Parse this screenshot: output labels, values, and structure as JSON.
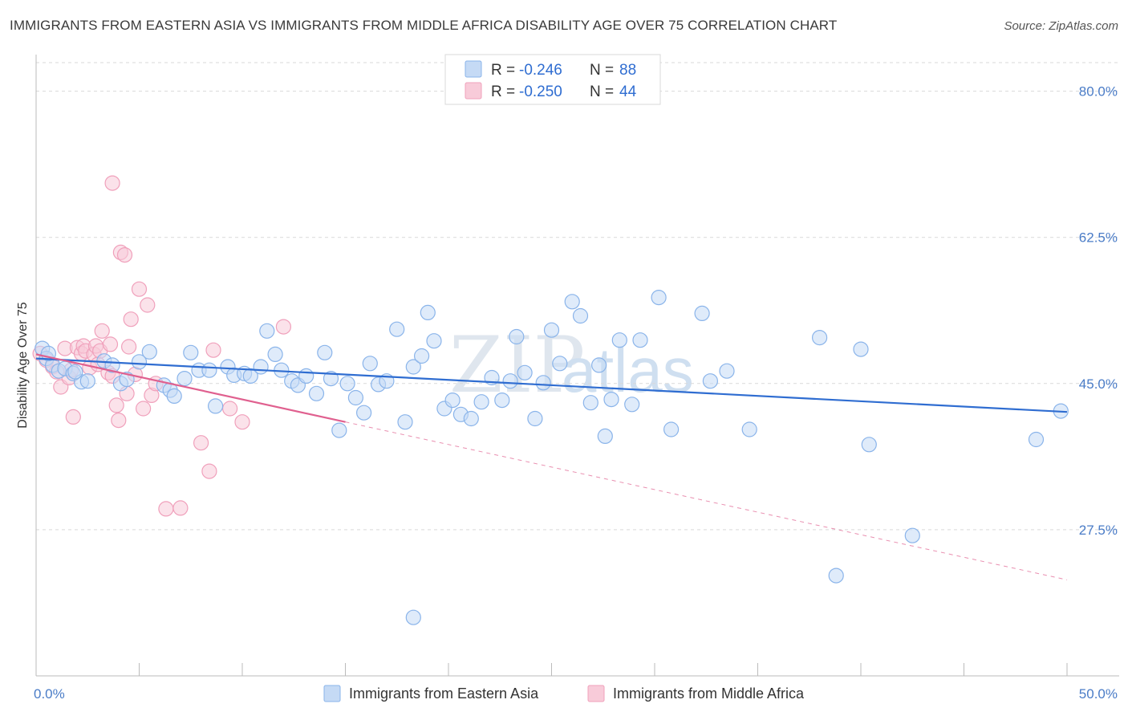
{
  "title": "IMMIGRANTS FROM EASTERN ASIA VS IMMIGRANTS FROM MIDDLE AFRICA DISABILITY AGE OVER 75 CORRELATION CHART",
  "source": "Source: ZipAtlas.com",
  "watermark": {
    "zip": "ZIP",
    "atlas": "atlas"
  },
  "legend": {
    "r_label": "R =",
    "n_label": "N =",
    "series": [
      {
        "r": "-0.246",
        "n": "88",
        "color": "#8ab4ea",
        "fill": "#c5daf5"
      },
      {
        "r": "-0.250",
        "n": "44",
        "color": "#f0a0bb",
        "fill": "#f8cbd9"
      }
    ]
  },
  "chart_data": {
    "type": "scatter",
    "title": "IMMIGRANTS FROM EASTERN ASIA VS IMMIGRANTS FROM MIDDLE AFRICA DISABILITY AGE OVER 75 CORRELATION CHART",
    "xlabel": "",
    "ylabel": "Disability Age Over 75",
    "xlim": [
      0,
      50
    ],
    "ylim": [
      10,
      84
    ],
    "x_tick_labels": [
      "0.0%",
      "50.0%"
    ],
    "y_ticks": [
      27.5,
      45.0,
      62.5,
      80.0
    ],
    "y_tick_labels": [
      "27.5%",
      "45.0%",
      "62.5%",
      "80.0%"
    ],
    "grid": true,
    "legend_position": "top-center",
    "series": [
      {
        "name": "Immigrants from Eastern Asia",
        "color": "#8ab4ea",
        "fill": "#c5daf5",
        "trend_color": "#2f6dd1",
        "trend": {
          "x": [
            0,
            50
          ],
          "y": [
            48.0,
            41.6
          ],
          "dashed_from": null
        },
        "points": [
          [
            0.3,
            49.2
          ],
          [
            0.5,
            48.0
          ],
          [
            0.8,
            47.2
          ],
          [
            1.1,
            46.5
          ],
          [
            1.4,
            46.8
          ],
          [
            1.8,
            46.2
          ],
          [
            2.2,
            45.2
          ],
          [
            2.5,
            45.3
          ],
          [
            3.3,
            47.7
          ],
          [
            3.7,
            47.2
          ],
          [
            4.1,
            45.0
          ],
          [
            4.4,
            45.5
          ],
          [
            5.0,
            47.6
          ],
          [
            5.5,
            48.8
          ],
          [
            6.2,
            44.8
          ],
          [
            6.5,
            44.2
          ],
          [
            6.7,
            43.5
          ],
          [
            7.2,
            45.6
          ],
          [
            7.5,
            48.7
          ],
          [
            7.9,
            46.6
          ],
          [
            8.4,
            46.6
          ],
          [
            8.7,
            42.3
          ],
          [
            9.3,
            47.0
          ],
          [
            9.6,
            46.0
          ],
          [
            10.1,
            46.2
          ],
          [
            10.4,
            45.9
          ],
          [
            10.9,
            47.0
          ],
          [
            11.2,
            51.3
          ],
          [
            11.6,
            48.5
          ],
          [
            11.9,
            46.6
          ],
          [
            12.4,
            45.3
          ],
          [
            12.7,
            44.8
          ],
          [
            13.1,
            45.9
          ],
          [
            13.6,
            43.8
          ],
          [
            14.0,
            48.7
          ],
          [
            14.3,
            45.6
          ],
          [
            14.7,
            39.4
          ],
          [
            15.1,
            45.0
          ],
          [
            15.5,
            43.3
          ],
          [
            15.9,
            41.5
          ],
          [
            16.2,
            47.4
          ],
          [
            16.6,
            44.9
          ],
          [
            17.0,
            45.3
          ],
          [
            17.5,
            51.5
          ],
          [
            17.9,
            40.4
          ],
          [
            18.3,
            47.0
          ],
          [
            18.7,
            48.3
          ],
          [
            19.0,
            53.5
          ],
          [
            19.3,
            50.1
          ],
          [
            19.8,
            42.0
          ],
          [
            20.2,
            43.0
          ],
          [
            20.6,
            41.3
          ],
          [
            21.1,
            40.8
          ],
          [
            21.6,
            42.8
          ],
          [
            22.1,
            45.7
          ],
          [
            22.6,
            43.0
          ],
          [
            23.0,
            45.3
          ],
          [
            23.3,
            50.6
          ],
          [
            23.7,
            46.3
          ],
          [
            24.2,
            40.8
          ],
          [
            24.6,
            45.1
          ],
          [
            25.0,
            51.4
          ],
          [
            25.4,
            47.4
          ],
          [
            26.0,
            54.8
          ],
          [
            26.4,
            53.1
          ],
          [
            26.9,
            42.7
          ],
          [
            27.3,
            47.2
          ],
          [
            27.6,
            38.7
          ],
          [
            27.9,
            43.1
          ],
          [
            28.3,
            50.2
          ],
          [
            28.9,
            42.5
          ],
          [
            29.3,
            50.2
          ],
          [
            30.2,
            55.3
          ],
          [
            30.8,
            39.5
          ],
          [
            32.3,
            53.4
          ],
          [
            32.7,
            45.3
          ],
          [
            33.5,
            46.5
          ],
          [
            34.6,
            39.5
          ],
          [
            38.0,
            50.5
          ],
          [
            38.8,
            22.0
          ],
          [
            40.0,
            49.1
          ],
          [
            40.4,
            37.7
          ],
          [
            42.5,
            26.8
          ],
          [
            18.3,
            17.0
          ],
          [
            48.5,
            38.3
          ],
          [
            49.7,
            41.7
          ],
          [
            0.6,
            48.6
          ],
          [
            1.9,
            46.4
          ]
        ]
      },
      {
        "name": "Immigrants from Middle Africa",
        "color": "#f0a0bb",
        "fill": "#f8cbd9",
        "trend_color": "#e0608f",
        "trend": {
          "x": [
            0,
            50
          ],
          "y": [
            48.5,
            21.5
          ],
          "solid_to": 15
        },
        "points": [
          [
            0.2,
            48.6
          ],
          [
            0.5,
            47.8
          ],
          [
            0.8,
            47.0
          ],
          [
            1.0,
            46.4
          ],
          [
            1.2,
            44.6
          ],
          [
            1.4,
            49.2
          ],
          [
            1.6,
            45.7
          ],
          [
            1.7,
            46.6
          ],
          [
            1.8,
            41.0
          ],
          [
            2.0,
            49.3
          ],
          [
            2.2,
            48.6
          ],
          [
            2.3,
            49.5
          ],
          [
            2.4,
            48.9
          ],
          [
            2.6,
            46.9
          ],
          [
            2.8,
            48.5
          ],
          [
            2.9,
            49.5
          ],
          [
            3.0,
            47.3
          ],
          [
            3.1,
            48.9
          ],
          [
            3.2,
            51.3
          ],
          [
            3.5,
            46.3
          ],
          [
            3.6,
            49.7
          ],
          [
            3.7,
            45.9
          ],
          [
            3.9,
            42.4
          ],
          [
            4.0,
            40.6
          ],
          [
            4.1,
            60.7
          ],
          [
            4.3,
            60.4
          ],
          [
            4.4,
            43.8
          ],
          [
            4.5,
            49.4
          ],
          [
            4.6,
            52.7
          ],
          [
            4.8,
            46.1
          ],
          [
            5.0,
            56.3
          ],
          [
            5.2,
            42.0
          ],
          [
            5.4,
            54.4
          ],
          [
            5.6,
            43.6
          ],
          [
            5.8,
            45.0
          ],
          [
            6.3,
            30.0
          ],
          [
            7.0,
            30.1
          ],
          [
            8.0,
            37.9
          ],
          [
            8.4,
            34.5
          ],
          [
            8.6,
            49.0
          ],
          [
            9.4,
            42.0
          ],
          [
            10.0,
            40.4
          ],
          [
            12.0,
            51.8
          ],
          [
            3.7,
            69.0
          ]
        ]
      }
    ]
  },
  "bottom_legend": [
    {
      "label": "Immigrants from Eastern Asia",
      "fill": "#c5daf5",
      "stroke": "#8ab4ea"
    },
    {
      "label": "Immigrants from Middle Africa",
      "fill": "#f8cbd9",
      "stroke": "#f0a0bb"
    }
  ]
}
